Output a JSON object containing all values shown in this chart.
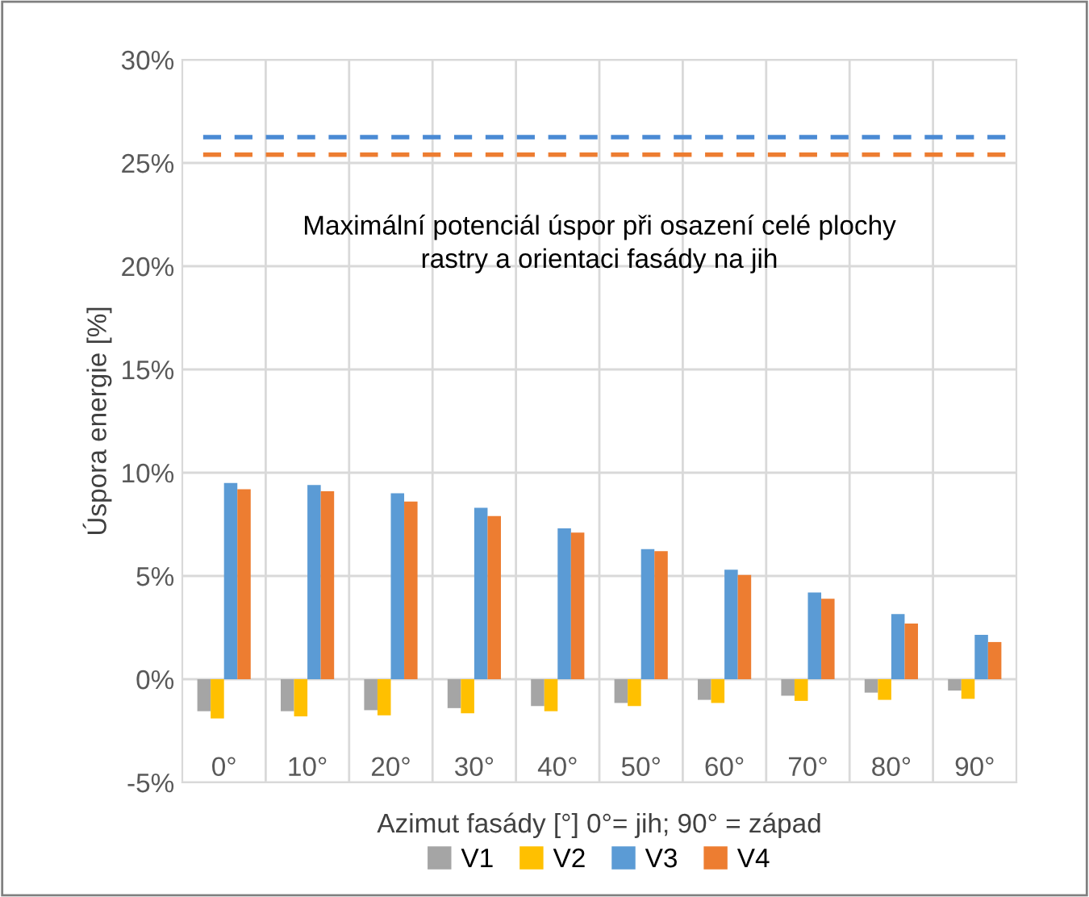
{
  "chart_data": {
    "type": "bar",
    "xlabel": "Azimut fasády [°] 0°= jih; 90° = západ",
    "ylabel": "Úspora energie [%]",
    "categories": [
      "0°",
      "10°",
      "20°",
      "30°",
      "40°",
      "50°",
      "60°",
      "70°",
      "80°",
      "90°"
    ],
    "series": [
      {
        "name": "V1",
        "color": "#a5a5a5",
        "values": [
          -1.55,
          -1.55,
          -1.5,
          -1.4,
          -1.3,
          -1.15,
          -1.0,
          -0.8,
          -0.65,
          -0.55
        ]
      },
      {
        "name": "V2",
        "color": "#ffc000",
        "values": [
          -1.9,
          -1.8,
          -1.75,
          -1.65,
          -1.55,
          -1.3,
          -1.15,
          -1.05,
          -1.0,
          -0.95
        ]
      },
      {
        "name": "V3",
        "color": "#5b9bd5",
        "values": [
          9.5,
          9.4,
          9.0,
          8.3,
          7.3,
          6.3,
          5.3,
          4.2,
          3.15,
          2.15
        ]
      },
      {
        "name": "V4",
        "color": "#ed7d31",
        "values": [
          9.2,
          9.1,
          8.6,
          7.9,
          7.1,
          6.2,
          5.05,
          3.9,
          2.7,
          1.8
        ]
      }
    ],
    "ref_lines": [
      {
        "axis": "y",
        "value": 26.25,
        "color": "#4a8ad4",
        "line_style": "dashed"
      },
      {
        "axis": "y",
        "value": 25.4,
        "color": "#ed7d31",
        "line_style": "dashed"
      }
    ],
    "annotations": [
      "Maximální potenciál úspor při osazení celé plochy\nrastry a orientaci fasády na jih"
    ],
    "ylim": [
      -5,
      30
    ],
    "yticks": [
      {
        "value": -5,
        "label": "-5%"
      },
      {
        "value": 0,
        "label": "0%"
      },
      {
        "value": 5,
        "label": "5%"
      },
      {
        "value": 10,
        "label": "10%"
      },
      {
        "value": 15,
        "label": "15%"
      },
      {
        "value": 20,
        "label": "20%"
      },
      {
        "value": 25,
        "label": "25%"
      },
      {
        "value": 30,
        "label": "30%"
      }
    ],
    "grid": true,
    "legend": "bottom"
  }
}
